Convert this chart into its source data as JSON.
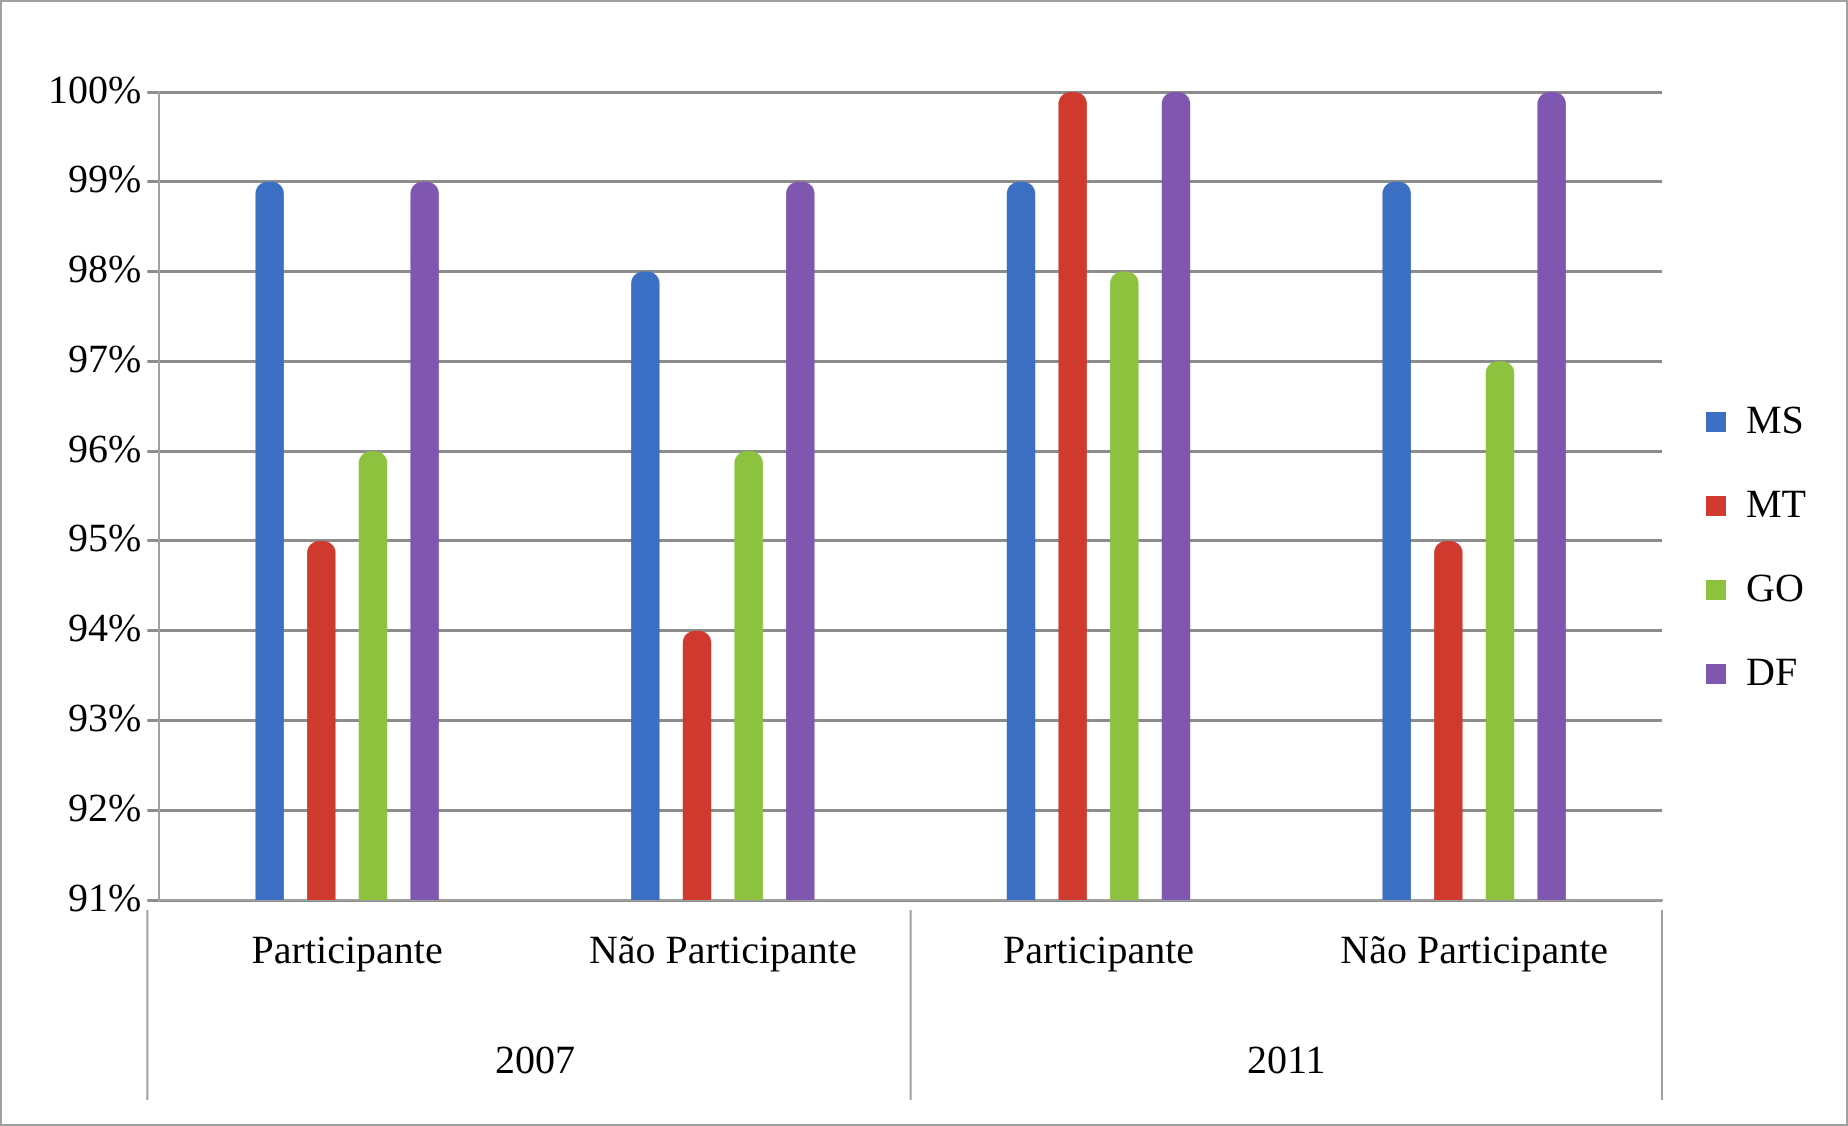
{
  "chart_data": {
    "type": "bar",
    "categories": [
      "Participante",
      "Não Participante",
      "Participante",
      "Não Participante"
    ],
    "series": [
      {
        "name": "MS",
        "color": "#3a6fc4",
        "values": [
          99,
          98,
          99,
          99
        ]
      },
      {
        "name": "MT",
        "color": "#d03a2e",
        "values": [
          95,
          94,
          100,
          95
        ]
      },
      {
        "name": "GO",
        "color": "#8dc23f",
        "values": [
          96,
          96,
          98,
          97
        ]
      },
      {
        "name": "DF",
        "color": "#7f56b0",
        "values": [
          99,
          99,
          100,
          100
        ]
      }
    ],
    "ylim": [
      91,
      100
    ],
    "yticks": [
      {
        "value": 91,
        "label": "91%"
      },
      {
        "value": 92,
        "label": "92%"
      },
      {
        "value": 93,
        "label": "93%"
      },
      {
        "value": 94,
        "label": "94%"
      },
      {
        "value": 95,
        "label": "95%"
      },
      {
        "value": 96,
        "label": "96%"
      },
      {
        "value": 97,
        "label": "97%"
      },
      {
        "value": 98,
        "label": "98%"
      },
      {
        "value": 99,
        "label": "99%"
      },
      {
        "value": 100,
        "label": "100%"
      }
    ],
    "annotations": [
      "2007",
      "2011"
    ],
    "grid": "y",
    "legend": "right"
  }
}
